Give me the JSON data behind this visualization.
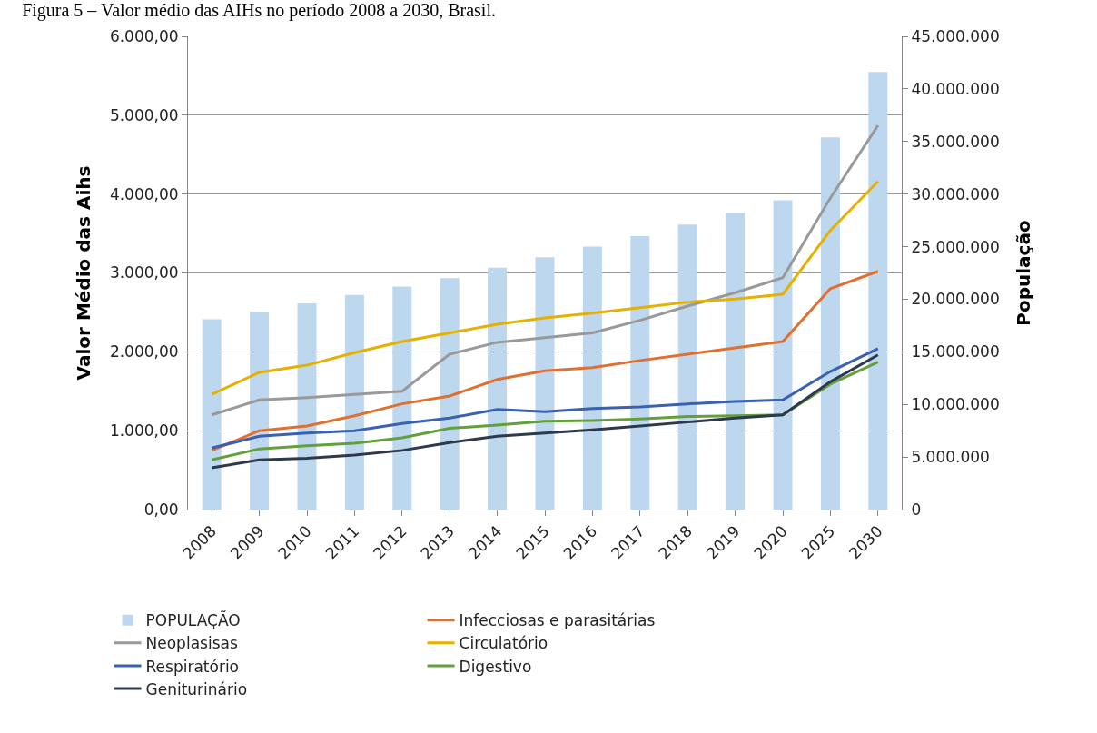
{
  "chart_data": {
    "type": "line",
    "title": "Figura 5 – Valor médio das AIHs no período 2008 a 2030, Brasil.",
    "ylabel": "Valor Médio das Aihs",
    "y2label": "População",
    "categories": [
      "2008",
      "2009",
      "2010",
      "2011",
      "2012",
      "2013",
      "2014",
      "2015",
      "2016",
      "2017",
      "2018",
      "2019",
      "2020",
      "2025",
      "2030"
    ],
    "series": [
      {
        "name": "POPULAÇÃO",
        "type": "bar",
        "axis": "y2",
        "color": "#bdd7ee",
        "values": [
          18100000,
          18800000,
          19600000,
          20400000,
          21200000,
          22000000,
          23000000,
          24000000,
          25000000,
          26000000,
          27100000,
          28200000,
          29400000,
          35400000,
          41600000
        ]
      },
      {
        "name": "Infecciosas e parasitárias",
        "color": "#e07030",
        "values": [
          750,
          1000,
          1060,
          1190,
          1340,
          1440,
          1650,
          1760,
          1800,
          1890,
          1970,
          2050,
          2130,
          2800,
          3020
        ]
      },
      {
        "name": "Neoplasisas",
        "color": "#999999",
        "values": [
          1200,
          1390,
          1420,
          1460,
          1500,
          1970,
          2120,
          2180,
          2240,
          2400,
          2580,
          2750,
          2940,
          3950,
          4870
        ]
      },
      {
        "name": "Circulatório",
        "color": "#e6b000",
        "values": [
          1460,
          1740,
          1830,
          1990,
          2130,
          2240,
          2350,
          2430,
          2490,
          2560,
          2630,
          2670,
          2730,
          3540,
          4160
        ]
      },
      {
        "name": "Respiratório",
        "color": "#3a62b0",
        "values": [
          780,
          930,
          970,
          1000,
          1090,
          1160,
          1270,
          1240,
          1280,
          1300,
          1340,
          1370,
          1390,
          1750,
          2040
        ]
      },
      {
        "name": "Digestivo",
        "color": "#62a03c",
        "values": [
          630,
          770,
          810,
          840,
          910,
          1030,
          1070,
          1120,
          1130,
          1150,
          1180,
          1190,
          1200,
          1590,
          1870
        ]
      },
      {
        "name": "Geniturinário",
        "color": "#2e3a4c",
        "values": [
          530,
          630,
          650,
          690,
          750,
          850,
          930,
          970,
          1010,
          1060,
          1110,
          1160,
          1200,
          1620,
          1960
        ]
      }
    ],
    "ylim": [
      0,
      6000
    ],
    "yticks": [
      {
        "value": 0,
        "label": "0,00"
      },
      {
        "value": 1000,
        "label": "1.000,00"
      },
      {
        "value": 2000,
        "label": "2.000,00"
      },
      {
        "value": 3000,
        "label": "3.000,00"
      },
      {
        "value": 4000,
        "label": "4.000,00"
      },
      {
        "value": 5000,
        "label": "5.000,00"
      },
      {
        "value": 6000,
        "label": "6.000,00"
      }
    ],
    "y2lim": [
      0,
      45000000
    ],
    "y2ticks": [
      0,
      {
        "value": 5000000,
        "label": "5.000.000"
      },
      {
        "value": 10000000,
        "label": "10.000.000"
      },
      {
        "value": 15000000,
        "label": "15.000.000"
      },
      {
        "value": 20000000,
        "label": "20.000.000"
      },
      {
        "value": 25000000,
        "label": "25.000.000"
      },
      {
        "value": 30000000,
        "label": "30.000.000"
      },
      {
        "value": 35000000,
        "label": "35.000.000"
      },
      {
        "value": 40000000,
        "label": "40.000.000"
      },
      {
        "value": 45000000,
        "label": "45.000.000"
      }
    ],
    "grid": "y",
    "legend": "bottom",
    "line_style": "solid"
  }
}
